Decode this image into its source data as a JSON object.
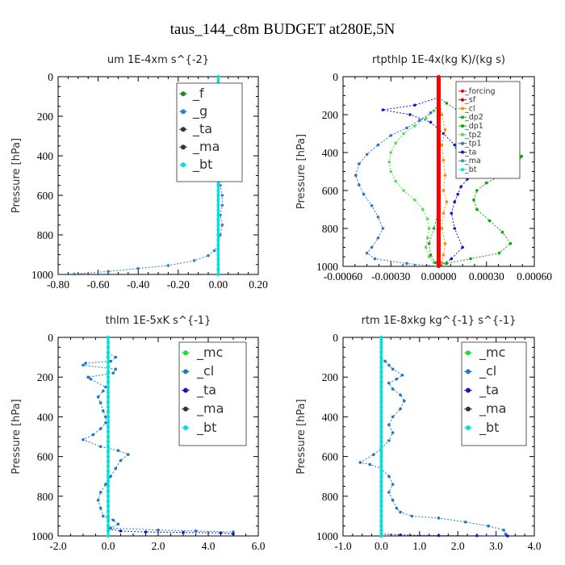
{
  "figure_title": "taus_144_c8m  BUDGET at280E,5N",
  "ylabel": "Pressure [hPa]",
  "colors": {
    "forcing": "#ff0000",
    "sf": "#cc0000",
    "cl": "#ff8c00",
    "dp2": "#2a9d2a",
    "dp1": "#00aa00",
    "tp2": "#55dd55",
    "tp1": "#2f74c0",
    "ta": "#1414c8",
    "ma": "#3a8fd0",
    "bt": "#00e0e0",
    "mc": "#22dd22",
    "cl_blue": "#1e78c8",
    "g": "#2f7fd0",
    "f": "#228b22"
  },
  "chart_data": [
    {
      "type": "line",
      "title": "um   1E-4xm s^{-2}",
      "ylabel": "Pressure [hPa]",
      "xlim": [
        -0.8,
        0.2
      ],
      "ylim": [
        1000,
        0
      ],
      "xticks": [
        "-0.80",
        "-0.60",
        "-0.40",
        "-0.20",
        "0.00",
        "0.20"
      ],
      "xtick_values": [
        -0.8,
        -0.6,
        -0.4,
        -0.2,
        0.0,
        0.2
      ],
      "yticks": [
        "0",
        "200",
        "400",
        "600",
        "800",
        "1000"
      ],
      "ytick_values": [
        0,
        200,
        400,
        600,
        800,
        1000
      ],
      "legend": [
        "_f",
        "_g",
        "_ta",
        "_ma",
        "_bt"
      ],
      "series": [
        {
          "name": "_g",
          "color": "g",
          "x": [
            -0.13,
            -0.12,
            -0.05,
            0.04,
            0.07,
            0.09,
            0.08,
            0.05,
            0.03,
            0.02,
            0.01,
            0.02,
            0.01,
            0.01,
            0.02,
            0.01,
            -0.01,
            0.0,
            0.01,
            0.02,
            0.02,
            0.01,
            0.02,
            0.01,
            0.0,
            -0.02,
            -0.05,
            -0.12,
            -0.25,
            -0.4,
            -0.55,
            -0.72
          ],
          "y": [
            110,
            125,
            140,
            150,
            165,
            180,
            200,
            225,
            250,
            275,
            300,
            325,
            350,
            375,
            400,
            425,
            450,
            500,
            550,
            600,
            650,
            700,
            750,
            800,
            850,
            880,
            905,
            930,
            955,
            970,
            985,
            998
          ]
        },
        {
          "name": "_f",
          "color": "f",
          "x": [
            -0.15,
            -0.1,
            -0.05,
            0.0
          ],
          "y": [
            115,
            118,
            122,
            125
          ]
        },
        {
          "name": "_bt",
          "color": "bt",
          "x": [
            0,
            0
          ],
          "y": [
            0,
            1000
          ]
        }
      ]
    },
    {
      "type": "line",
      "title": "rtpthlp   1E-4x(kg K)/(kg s)",
      "ylabel": "Pressure [hPa]",
      "xlim": [
        -0.0006,
        0.0006
      ],
      "ylim": [
        1000,
        0
      ],
      "xticks": [
        "-0.00060",
        "-0.00030",
        "0.00000",
        "0.00030",
        "0.00060"
      ],
      "xtick_values": [
        -0.0006,
        -0.0003,
        0.0,
        0.0003,
        0.0006
      ],
      "yticks": [
        "0",
        "200",
        "400",
        "600",
        "800",
        "1000"
      ],
      "ytick_values": [
        0,
        200,
        400,
        600,
        800,
        1000
      ],
      "legend": [
        "_forcing",
        "_sf",
        "_cl",
        "_dp2",
        "_dp1",
        "_tp2",
        "_tp1",
        "_ta",
        "_ma",
        "_bt"
      ],
      "series": [
        {
          "name": "_dp1",
          "color": "dp1",
          "x": [
            0.0,
            5e-05,
            0.00012,
            0.0002,
            0.00028,
            0.00035,
            0.00042,
            0.00048,
            0.00052,
            0.0005,
            0.00044,
            0.0003,
            0.00024,
            0.00022,
            0.00024,
            0.00032,
            0.0004,
            0.00045,
            0.00038,
            0.0002,
            5e-05,
            0.0
          ],
          "y": [
            110,
            140,
            180,
            220,
            260,
            300,
            340,
            380,
            420,
            460,
            500,
            560,
            600,
            650,
            700,
            760,
            820,
            880,
            930,
            960,
            985,
            1000
          ]
        },
        {
          "name": "_tp2",
          "color": "tp2",
          "x": [
            0.0,
            -3e-05,
            -8e-05,
            -0.00015,
            -0.00022,
            -0.00027,
            -0.0003,
            -0.00031,
            -0.0003,
            -0.00027,
            -0.00022,
            -0.00015,
            -0.0001,
            -7e-05,
            -6e-05,
            -7e-05,
            -8e-05,
            -6e-05,
            -3e-05,
            0.0
          ],
          "y": [
            150,
            180,
            220,
            260,
            300,
            350,
            400,
            450,
            500,
            550,
            600,
            650,
            700,
            750,
            800,
            850,
            900,
            950,
            980,
            1000
          ]
        },
        {
          "name": "_tp1",
          "color": "tp1",
          "x": [
            0.0,
            -5e-05,
            -0.00012,
            -0.0002,
            -0.0003,
            -0.00038,
            -0.00045,
            -0.0005,
            -0.00052,
            -0.0005,
            -0.00047,
            -0.00042,
            -0.00038,
            -0.00035,
            -0.00038,
            -0.00042,
            -0.00045,
            -0.0004,
            -0.0002,
            0.0
          ],
          "y": [
            150,
            190,
            230,
            270,
            310,
            360,
            410,
            460,
            520,
            570,
            620,
            680,
            740,
            800,
            850,
            900,
            930,
            960,
            985,
            1000
          ]
        },
        {
          "name": "_ta",
          "color": "ta",
          "x": [
            0.0,
            -0.00015,
            -0.00035,
            -0.00018,
            -5e-05,
            3e-05,
            0.0001,
            0.00012,
            0.00015,
            0.00018,
            0.00014,
            0.00012,
            0.0001,
            8e-05,
            0.0001,
            0.00015,
            8e-05,
            0.0
          ],
          "y": [
            110,
            150,
            175,
            200,
            240,
            300,
            360,
            420,
            480,
            540,
            580,
            620,
            660,
            720,
            800,
            900,
            960,
            1000
          ]
        },
        {
          "name": "_cl",
          "color": "cl",
          "x": [
            0.0,
            2e-05,
            4e-05,
            2e-05,
            3e-05,
            4e-05,
            3e-05,
            5e-05,
            3e-05,
            2e-05,
            4e-05,
            3e-05,
            2e-05,
            0.0
          ],
          "y": [
            100,
            200,
            280,
            360,
            440,
            520,
            600,
            660,
            720,
            800,
            880,
            940,
            980,
            1000
          ]
        },
        {
          "name": "_dp2",
          "color": "dp2",
          "x": [
            0.0,
            -3e-05,
            -6e-05,
            -5e-05,
            -2e-05,
            0.0
          ],
          "y": [
            700,
            800,
            880,
            940,
            980,
            1000
          ]
        },
        {
          "name": "_ma",
          "color": "ma",
          "x": [
            0.0,
            0.0
          ],
          "y": [
            0,
            1000
          ]
        },
        {
          "name": "_bt",
          "color": "bt",
          "x": [
            0.0,
            0.0
          ],
          "y": [
            0,
            1000
          ]
        },
        {
          "name": "_sf",
          "color": "sf",
          "x": [
            0.0,
            0.0
          ],
          "y": [
            0,
            1000
          ]
        },
        {
          "name": "_forcing",
          "color": "forcing",
          "x": [
            0.0,
            0.0
          ],
          "y": [
            0,
            1000
          ]
        }
      ]
    },
    {
      "type": "line",
      "title": "thlm   1E-5xK s^{-1}",
      "ylabel": "Pressure [hPa]",
      "xlim": [
        -2.0,
        6.0
      ],
      "ylim": [
        1000,
        0
      ],
      "xticks": [
        "-2.0",
        "0.0",
        "2.0",
        "4.0",
        "6.0"
      ],
      "xtick_values": [
        -2.0,
        0.0,
        2.0,
        4.0,
        6.0
      ],
      "yticks": [
        "0",
        "200",
        "400",
        "600",
        "800",
        "1000"
      ],
      "ytick_values": [
        0,
        200,
        400,
        600,
        800,
        1000
      ],
      "legend": [
        "_mc",
        "_cl",
        "_ta",
        "_ma",
        "_bt"
      ],
      "series": [
        {
          "name": "_cl",
          "color": "cl_blue",
          "x": [
            0.0,
            0.3,
            0.1,
            -0.9,
            -1.0,
            0.3,
            0.2,
            -0.8,
            -0.7,
            -0.1,
            -0.2,
            -0.4,
            -0.3,
            -0.2,
            -0.1,
            -0.1,
            -0.3,
            -0.6,
            -1.0,
            -0.3,
            0.4,
            0.8,
            0.5,
            0.3,
            0.1,
            -0.1,
            -0.3,
            -0.4,
            -0.3,
            -0.2,
            0.2,
            0.4,
            0.1,
            2.0,
            3.5,
            5.0
          ],
          "y": [
            80,
            100,
            120,
            130,
            140,
            160,
            180,
            200,
            210,
            250,
            270,
            300,
            330,
            370,
            400,
            430,
            460,
            490,
            515,
            550,
            570,
            590,
            620,
            660,
            700,
            740,
            780,
            820,
            860,
            900,
            920,
            940,
            960,
            970,
            975,
            980
          ]
        },
        {
          "name": "_ta",
          "color": "ta",
          "x": [
            0.0,
            0.0,
            0.5,
            1.5,
            3.0,
            4.5,
            5.0
          ],
          "y": [
            950,
            965,
            975,
            980,
            982,
            985,
            990
          ]
        },
        {
          "name": "_mc",
          "color": "mc",
          "x": [
            0.0,
            0.0
          ],
          "y": [
            0,
            1000
          ]
        },
        {
          "name": "_bt",
          "color": "bt",
          "x": [
            0.0,
            0.0
          ],
          "y": [
            0,
            1000
          ]
        }
      ]
    },
    {
      "type": "line",
      "title": "rtm   1E-8xkg kg^{-1} s^{-1}",
      "ylabel": "Pressure [hPa]",
      "xlim": [
        -1.0,
        4.0
      ],
      "ylim": [
        1000,
        0
      ],
      "xticks": [
        "-1.0",
        "0.0",
        "1.0",
        "2.0",
        "3.0",
        "4.0"
      ],
      "xtick_values": [
        -1.0,
        0.0,
        1.0,
        2.0,
        3.0,
        4.0
      ],
      "yticks": [
        "0",
        "200",
        "400",
        "600",
        "800",
        "1000"
      ],
      "ytick_values": [
        0,
        200,
        400,
        600,
        800,
        1000
      ],
      "legend": [
        "_mc",
        "_cl",
        "_ta",
        "_ma",
        "_bt"
      ],
      "series": [
        {
          "name": "_cl",
          "color": "cl_blue",
          "x": [
            0.0,
            0.1,
            0.2,
            0.3,
            0.55,
            0.4,
            0.2,
            0.3,
            0.5,
            0.6,
            0.5,
            0.3,
            0.2,
            0.3,
            0.2,
            0.0,
            -0.2,
            -0.55,
            -0.3,
            0.0,
            0.2,
            0.3,
            0.2,
            0.3,
            0.4,
            0.5,
            0.8,
            1.5,
            2.2,
            2.8,
            3.2,
            3.25,
            3.3
          ],
          "y": [
            100,
            120,
            140,
            160,
            190,
            210,
            230,
            260,
            290,
            320,
            360,
            400,
            440,
            480,
            520,
            560,
            590,
            630,
            640,
            660,
            700,
            740,
            780,
            820,
            860,
            880,
            900,
            910,
            930,
            950,
            970,
            990,
            1000
          ]
        },
        {
          "name": "_ta",
          "color": "ta",
          "x": [
            0.0,
            0.5,
            1.5,
            2.5,
            3.3
          ],
          "y": [
            990,
            995,
            998,
            999,
            1000
          ]
        },
        {
          "name": "_mc",
          "color": "mc",
          "x": [
            0.0,
            0.0
          ],
          "y": [
            0,
            1000
          ]
        },
        {
          "name": "_bt",
          "color": "bt",
          "x": [
            0.0,
            0.0
          ],
          "y": [
            0,
            1000
          ]
        }
      ]
    }
  ]
}
